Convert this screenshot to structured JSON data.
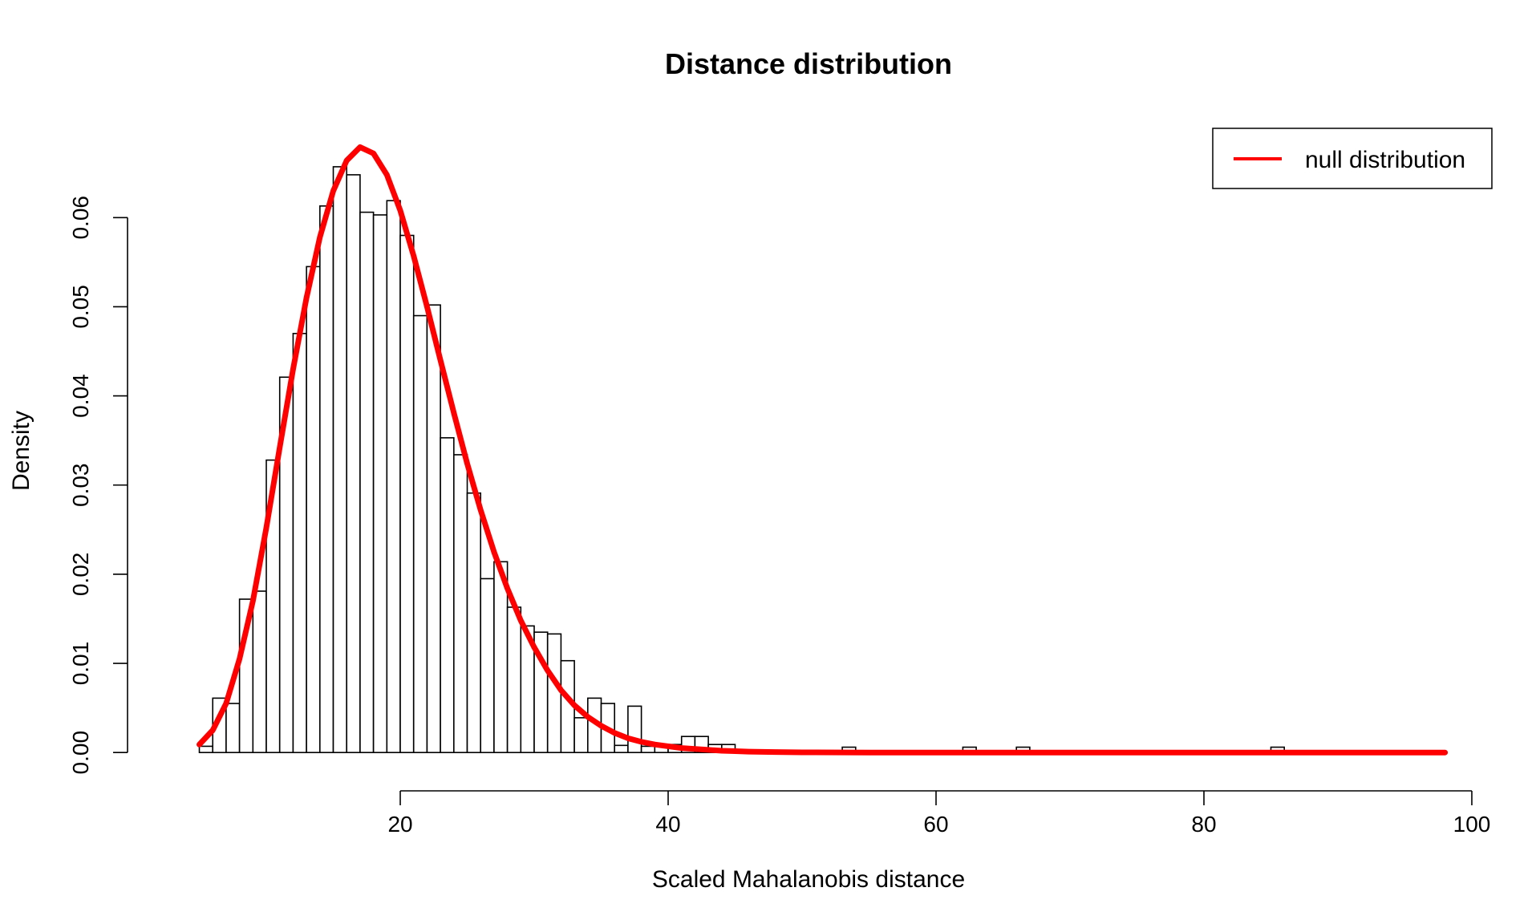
{
  "chart_data": {
    "type": "bar",
    "title": "Distance distribution",
    "xlabel": "Scaled Mahalanobis distance",
    "ylabel": "Density",
    "xlim": [
      -0.6,
      100
    ],
    "ylim": [
      -0.0025,
      0.071
    ],
    "x_ticks": [
      20,
      40,
      60,
      80,
      100
    ],
    "y_ticks": [
      0.0,
      0.01,
      0.02,
      0.03,
      0.04,
      0.05,
      0.06
    ],
    "x_tick_labels": [
      "20",
      "40",
      "60",
      "80",
      "100"
    ],
    "y_tick_labels": [
      "0.00",
      "0.01",
      "0.02",
      "0.03",
      "0.04",
      "0.05",
      "0.06"
    ],
    "bin_start": 5,
    "bin_width": 1,
    "histogram_density": [
      0.0007,
      0.0061,
      0.0055,
      0.0172,
      0.0181,
      0.0328,
      0.0421,
      0.047,
      0.0545,
      0.0613,
      0.0657,
      0.0648,
      0.0606,
      0.0603,
      0.0619,
      0.058,
      0.049,
      0.0502,
      0.0353,
      0.0334,
      0.0291,
      0.0195,
      0.0214,
      0.0163,
      0.0142,
      0.0135,
      0.0133,
      0.0103,
      0.0039,
      0.0061,
      0.0055,
      0.0008,
      0.0052,
      0.0007,
      0.0007,
      0.0009,
      0.0018,
      0.0018,
      0.0009,
      0.0009,
      0.0001,
      0,
      0,
      0,
      0,
      0,
      0,
      0,
      0.0006,
      0,
      0,
      0.0002,
      0.0002,
      0,
      0,
      0,
      0,
      0.0006,
      0.0002,
      0,
      0,
      0.0006,
      0.0002,
      0,
      0,
      0,
      0,
      0,
      0,
      0,
      0,
      0,
      0,
      0,
      0,
      0.0002,
      0,
      0,
      0,
      0,
      0.0006,
      0,
      0,
      0,
      0,
      0,
      0,
      0,
      0,
      0,
      0,
      0,
      0.0002
    ],
    "series": [
      {
        "name": "null distribution",
        "type": "line",
        "color": "#ff0000",
        "x": [
          5,
          6,
          7,
          8,
          9,
          10,
          11,
          12,
          13,
          14,
          15,
          16,
          17,
          18,
          19,
          20,
          21,
          22,
          23,
          24,
          25,
          26,
          27,
          28,
          29,
          30,
          31,
          32,
          33,
          34,
          35,
          36,
          37,
          38,
          39,
          40,
          41,
          42,
          43,
          44,
          45,
          46,
          48,
          50,
          55,
          60,
          70,
          80,
          90,
          98
        ],
        "y": [
          0.0009,
          0.0025,
          0.0055,
          0.0105,
          0.017,
          0.0252,
          0.0342,
          0.043,
          0.051,
          0.0578,
          0.063,
          0.0664,
          0.0679,
          0.0672,
          0.0648,
          0.0608,
          0.0557,
          0.05,
          0.044,
          0.0381,
          0.0324,
          0.0272,
          0.0225,
          0.0184,
          0.0148,
          0.0118,
          0.0092,
          0.007,
          0.0053,
          0.004,
          0.003,
          0.0022,
          0.0016,
          0.0012,
          0.0009,
          0.0007,
          0.0005,
          0.0004,
          0.0003,
          0.0002,
          0.00015,
          0.0001,
          5e-05,
          2e-05,
          0,
          0,
          0,
          0,
          0,
          0
        ]
      }
    ],
    "legend": {
      "position": "top-right",
      "entries": [
        "null distribution"
      ]
    },
    "grid": false
  }
}
